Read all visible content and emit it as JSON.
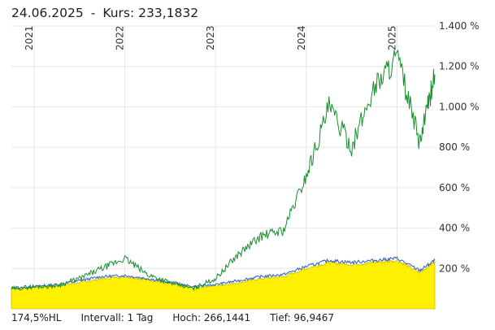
{
  "header": {
    "date": "24.06.2025",
    "separator": "-",
    "price_label": "Kurs:",
    "price_value": "233,1832"
  },
  "footer": {
    "change": "174,5%HL",
    "interval": "Intervall: 1 Tag",
    "high": "Hoch: 266,1441",
    "low": "Tief: 96,9467"
  },
  "chart_data": {
    "type": "area",
    "x_ticks": [
      "2021",
      "2022",
      "2023",
      "2024",
      "2025"
    ],
    "y_ticks": [
      "200 %",
      "400 %",
      "600 %",
      "800 %",
      "1.000 %",
      "1.200 %",
      "1.400 %"
    ],
    "y_range": [
      0,
      1400
    ],
    "grid": true,
    "x": [
      "2020-10",
      "2021-01",
      "2021-04",
      "2021-07",
      "2021-10",
      "2022-01",
      "2022-04",
      "2022-07",
      "2022-10",
      "2023-01",
      "2023-04",
      "2023-07",
      "2023-10",
      "2024-01",
      "2024-04",
      "2024-07",
      "2024-10",
      "2025-01",
      "2025-04",
      "2025-06"
    ],
    "colors": {
      "area": "#ffef00",
      "green": "#1a8f2e",
      "blue": "#2a5fbf"
    },
    "series": [
      {
        "values": [
          100,
          110,
          115,
          150,
          200,
          250,
          170,
          130,
          100,
          150,
          270,
          360,
          390,
          660,
          1000,
          800,
          1100,
          1250,
          820,
          1160
        ]
      },
      {
        "values": [
          100,
          110,
          120,
          140,
          160,
          165,
          150,
          130,
          110,
          120,
          140,
          160,
          170,
          210,
          240,
          230,
          240,
          250,
          190,
          240
        ]
      },
      {
        "values": [
          100,
          108,
          115,
          130,
          150,
          160,
          145,
          125,
          105,
          115,
          130,
          150,
          160,
          200,
          230,
          220,
          230,
          240,
          180,
          233
        ]
      }
    ]
  }
}
